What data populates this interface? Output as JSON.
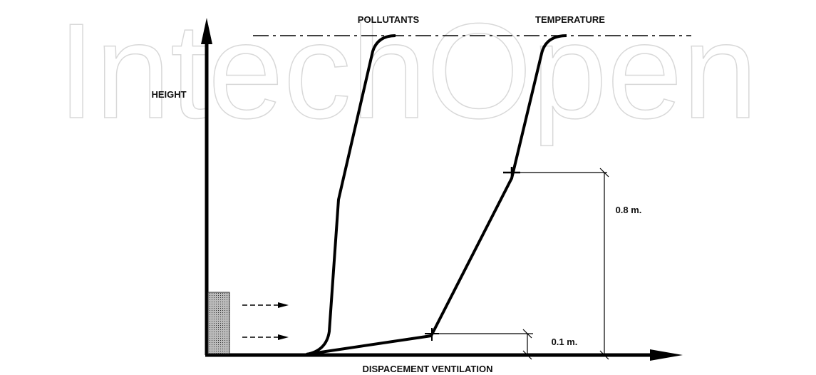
{
  "watermark": "IntechOpen",
  "labels": {
    "pollutants": "POLLUTANTS",
    "temperature": "TEMPERATURE",
    "height": "HEIGHT",
    "upper_dimension": "0.8 m.",
    "lower_dimension": "0.1 m.",
    "x_axis": "DISPACEMENT VENTILATION"
  }
}
